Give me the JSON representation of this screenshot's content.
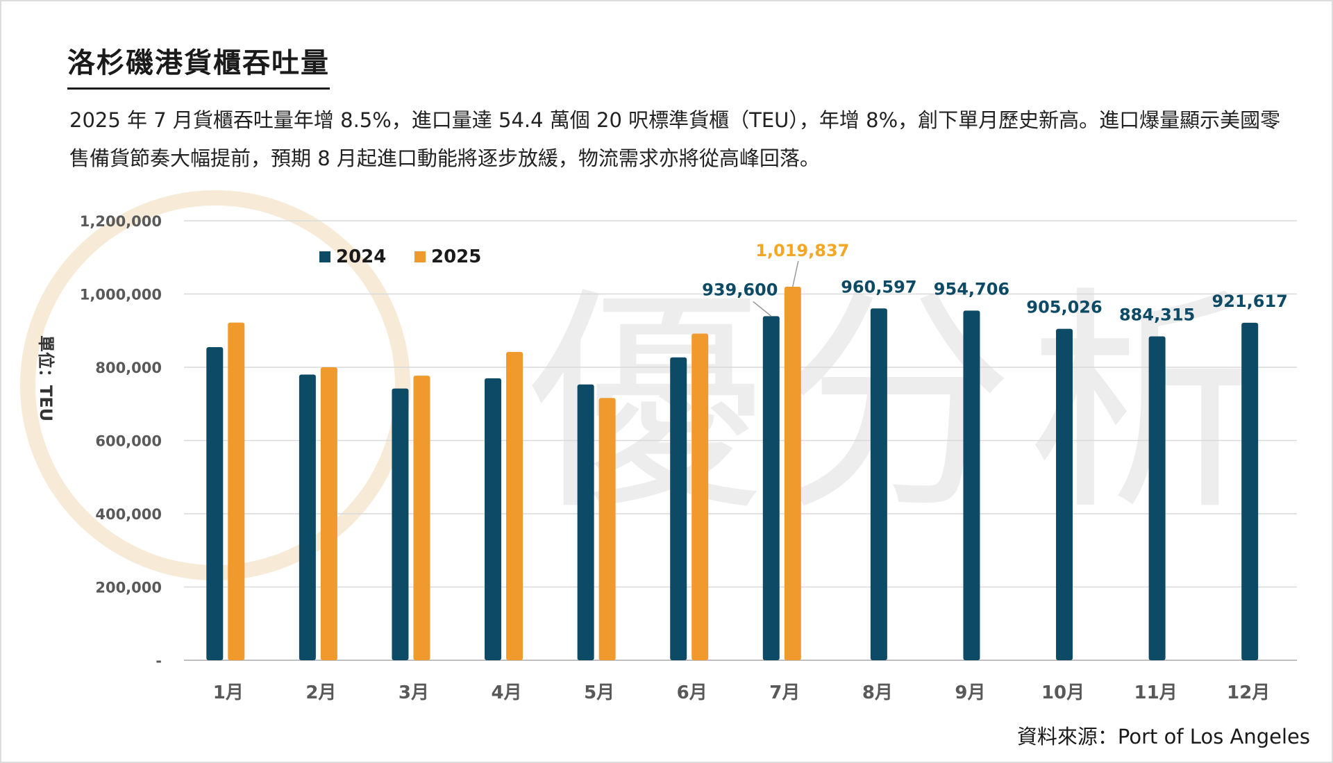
{
  "title": "洛杉磯港貨櫃吞吐量",
  "description": "2025 年 7 月貨櫃吞吐量年增 8.5%，進口量達 54.4 萬個 20 呎標準貨櫃（TEU），年增 8%，創下單月歷史新高。進口爆量顯示美國零售備貨節奏大幅提前，預期 8 月起進口動能將逐步放緩，物流需求亦將從高峰回落。",
  "source": "資料來源：Port of Los Angeles",
  "watermark": "優分析",
  "colors": {
    "series_2024": "#0d4a66",
    "series_2025": "#f09a2e",
    "label_2025": "#f5a623",
    "grid": "#d9d9d9",
    "axis_text": "#595959"
  },
  "chart_data": {
    "type": "bar",
    "categories": [
      "1月",
      "2月",
      "3月",
      "4月",
      "5月",
      "6月",
      "7月",
      "8月",
      "9月",
      "10月",
      "11月",
      "12月"
    ],
    "series": [
      {
        "name": "2024",
        "values": [
          855000,
          780000,
          742000,
          770000,
          753000,
          827000,
          939600,
          960597,
          954706,
          905026,
          884315,
          921617
        ]
      },
      {
        "name": "2025",
        "values": [
          922000,
          800000,
          777000,
          842000,
          716000,
          892000,
          1019837,
          null,
          null,
          null,
          null,
          null
        ]
      }
    ],
    "data_labels": [
      {
        "series": "2024",
        "category": "7月",
        "text": "939,600"
      },
      {
        "series": "2025",
        "category": "7月",
        "text": "1,019,837"
      },
      {
        "series": "2024",
        "category": "8月",
        "text": "960,597"
      },
      {
        "series": "2024",
        "category": "9月",
        "text": "954,706"
      },
      {
        "series": "2024",
        "category": "10月",
        "text": "905,026"
      },
      {
        "series": "2024",
        "category": "11月",
        "text": "884,315"
      },
      {
        "series": "2024",
        "category": "12月",
        "text": "921,617"
      }
    ],
    "ylabel": "單位：TEU",
    "ylim": [
      0,
      1200000
    ],
    "yticks": [
      0,
      200000,
      400000,
      600000,
      800000,
      1000000,
      1200000
    ],
    "ytick_labels": [
      "-",
      "200,000",
      "400,000",
      "600,000",
      "800,000",
      "1,000,000",
      "1,200,000"
    ],
    "legend": "top-left",
    "grid": true
  }
}
